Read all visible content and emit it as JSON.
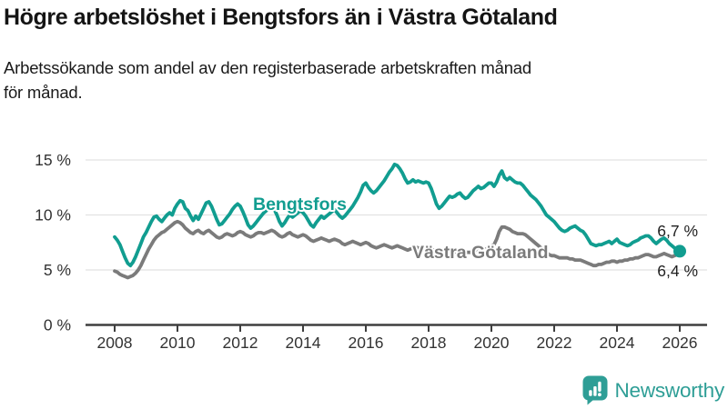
{
  "chart_data": {
    "type": "line",
    "title": "Högre arbetslöshet i Bengtsfors än i Västra Götaland",
    "subtitle_lines": [
      "Arbetssökande som andel av den registerbaserade arbetskraften månad",
      "för månad."
    ],
    "frequency": "monthly",
    "x_start": "2008-01",
    "x_end": "2026-01",
    "x_tick_labels": [
      "2008",
      "2010",
      "2012",
      "2014",
      "2016",
      "2018",
      "2020",
      "2022",
      "2024",
      "2026"
    ],
    "y_ticks": [
      0,
      5,
      10,
      15
    ],
    "y_tick_labels": [
      "0 %",
      "5 %",
      "10 %",
      "15 %"
    ],
    "ylim": [
      0,
      15.5
    ],
    "unit": "%",
    "grid": true,
    "legend": "inline-labels",
    "series": [
      {
        "name": "Bengtsfors",
        "color": "#119d90",
        "end_label": "6,7 %",
        "end_dot": true,
        "values": [
          8.0,
          7.7,
          7.3,
          6.7,
          6.1,
          5.6,
          5.4,
          5.7,
          6.2,
          6.8,
          7.4,
          8.0,
          8.4,
          8.9,
          9.4,
          9.8,
          9.9,
          9.6,
          9.4,
          9.7,
          10.0,
          10.2,
          10.0,
          10.6,
          11.0,
          11.3,
          11.2,
          10.6,
          10.4,
          9.9,
          9.5,
          9.9,
          9.6,
          10.1,
          10.6,
          11.1,
          11.2,
          10.8,
          10.2,
          9.6,
          9.1,
          9.2,
          9.5,
          9.8,
          10.1,
          10.5,
          10.8,
          11.0,
          10.8,
          10.3,
          9.7,
          9.1,
          8.8,
          9.0,
          9.3,
          9.6,
          9.9,
          10.2,
          10.4,
          10.7,
          10.9,
          10.5,
          10.0,
          9.4,
          9.0,
          9.3,
          9.7,
          10.0,
          9.8,
          10.0,
          10.2,
          10.4,
          10.2,
          9.9,
          9.5,
          9.1,
          8.9,
          9.3,
          9.6,
          9.9,
          9.7,
          9.9,
          10.1,
          10.3,
          10.5,
          10.2,
          9.9,
          9.7,
          9.9,
          10.2,
          10.5,
          10.8,
          11.2,
          11.6,
          12.1,
          12.7,
          12.9,
          12.5,
          12.2,
          12.0,
          12.2,
          12.5,
          12.8,
          13.1,
          13.5,
          13.9,
          14.2,
          14.6,
          14.5,
          14.2,
          13.8,
          13.3,
          12.9,
          13.0,
          13.2,
          13.0,
          13.1,
          13.0,
          12.9,
          13.0,
          12.9,
          12.4,
          11.7,
          11.0,
          10.6,
          10.8,
          11.1,
          11.4,
          11.7,
          11.6,
          11.7,
          11.9,
          12.0,
          11.7,
          11.5,
          11.6,
          11.9,
          12.2,
          12.4,
          12.6,
          12.4,
          12.5,
          12.7,
          12.9,
          12.9,
          12.6,
          13.0,
          13.6,
          14.0,
          13.4,
          13.2,
          13.4,
          13.2,
          13.0,
          12.9,
          12.9,
          12.7,
          12.4,
          12.1,
          11.8,
          11.6,
          11.4,
          11.1,
          10.8,
          10.4,
          10.0,
          9.8,
          9.6,
          9.4,
          9.1,
          8.8,
          8.6,
          8.5,
          8.6,
          8.8,
          8.9,
          9.0,
          8.8,
          8.6,
          8.5,
          8.2,
          7.8,
          7.4,
          7.3,
          7.2,
          7.3,
          7.3,
          7.4,
          7.5,
          7.6,
          7.4,
          7.6,
          7.8,
          7.5,
          7.4,
          7.3,
          7.2,
          7.3,
          7.5,
          7.6,
          7.7,
          7.9,
          8.0,
          8.1,
          8.1,
          7.9,
          7.6,
          7.4,
          7.6,
          7.8,
          7.9,
          7.7,
          7.4,
          7.2,
          7.0,
          6.8,
          6.7
        ]
      },
      {
        "name": "Västra Götaland",
        "color": "#7b7b7b",
        "end_label": "6,4 %",
        "end_dot": false,
        "values": [
          4.9,
          4.8,
          4.6,
          4.5,
          4.4,
          4.3,
          4.4,
          4.5,
          4.7,
          5.0,
          5.4,
          5.9,
          6.4,
          6.9,
          7.3,
          7.7,
          8.0,
          8.2,
          8.4,
          8.5,
          8.7,
          8.9,
          9.1,
          9.3,
          9.4,
          9.3,
          9.1,
          8.8,
          8.6,
          8.4,
          8.3,
          8.5,
          8.6,
          8.4,
          8.3,
          8.5,
          8.6,
          8.4,
          8.2,
          8.0,
          7.9,
          8.0,
          8.2,
          8.3,
          8.2,
          8.1,
          8.2,
          8.4,
          8.5,
          8.4,
          8.2,
          8.1,
          8.0,
          8.1,
          8.3,
          8.4,
          8.4,
          8.3,
          8.4,
          8.5,
          8.6,
          8.5,
          8.3,
          8.1,
          8.0,
          8.1,
          8.3,
          8.4,
          8.2,
          8.1,
          8.0,
          8.1,
          8.2,
          8.1,
          7.9,
          7.7,
          7.6,
          7.7,
          7.8,
          7.9,
          7.8,
          7.7,
          7.6,
          7.7,
          7.8,
          7.7,
          7.6,
          7.4,
          7.3,
          7.4,
          7.5,
          7.6,
          7.5,
          7.4,
          7.3,
          7.4,
          7.5,
          7.4,
          7.2,
          7.1,
          7.0,
          7.1,
          7.2,
          7.3,
          7.2,
          7.1,
          7.0,
          7.1,
          7.2,
          7.1,
          7.0,
          6.9,
          6.8,
          6.9,
          7.0,
          7.1,
          7.0,
          6.9,
          6.9,
          7.0,
          7.0,
          6.9,
          6.8,
          6.7,
          6.6,
          6.7,
          6.8,
          6.8,
          6.7,
          6.6,
          6.6,
          6.7,
          6.8,
          6.7,
          6.6,
          6.6,
          6.6,
          6.7,
          6.8,
          6.8,
          6.7,
          6.8,
          6.9,
          7.0,
          7.2,
          7.3,
          7.8,
          8.5,
          8.9,
          8.9,
          8.8,
          8.7,
          8.5,
          8.4,
          8.3,
          8.3,
          8.3,
          8.2,
          8.0,
          7.8,
          7.6,
          7.4,
          7.2,
          7.0,
          6.8,
          6.6,
          6.4,
          6.3,
          6.3,
          6.2,
          6.1,
          6.1,
          6.1,
          6.1,
          6.0,
          6.0,
          5.9,
          5.9,
          5.9,
          5.8,
          5.7,
          5.6,
          5.5,
          5.4,
          5.4,
          5.5,
          5.5,
          5.6,
          5.7,
          5.7,
          5.8,
          5.8,
          5.7,
          5.8,
          5.8,
          5.9,
          5.9,
          6.0,
          6.0,
          6.1,
          6.1,
          6.2,
          6.3,
          6.4,
          6.4,
          6.3,
          6.2,
          6.2,
          6.3,
          6.4,
          6.5,
          6.4,
          6.3,
          6.2,
          6.3,
          6.4,
          6.4
        ]
      }
    ],
    "colors": {
      "accent_teal": "#119d90",
      "series_gray": "#7b7b7b",
      "gridline": "#e2e2e2",
      "axis": "#3e3e3e",
      "tick_text": "#333333",
      "end_label_text": "#1f1f1f",
      "logo_teal": "#2e9e96"
    }
  },
  "footer": {
    "brand": "Newsworthy"
  }
}
